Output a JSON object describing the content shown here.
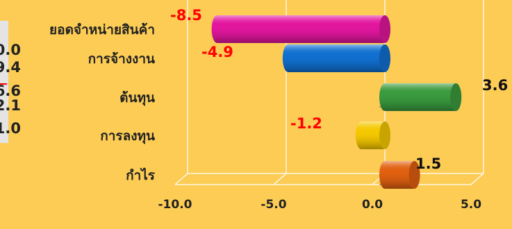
{
  "left_numbers": [
    "0.0",
    "9.4",
    "6.6",
    "2.1",
    "1.0"
  ],
  "chart_data": {
    "type": "bar",
    "orientation": "horizontal",
    "categories": [
      "ยอดจำหน่ายสินค้า",
      "การจ้างงาน",
      "ต้นทุน",
      "การลงทุน",
      "กำไร"
    ],
    "values": [
      -8.5,
      -4.9,
      3.6,
      -1.2,
      1.5
    ],
    "value_labels": [
      "-8.5",
      "-4.9",
      "3.6",
      "-1.2",
      "1.5"
    ],
    "bar_colors": [
      "#e2169e",
      "#1070d0",
      "#3a9a3e",
      "#f5c800",
      "#e06010"
    ],
    "negative_label_color": "#ff0000",
    "positive_label_color": "#111111",
    "xlim": [
      -10,
      5
    ],
    "xticks": [
      -10,
      -5,
      0,
      5
    ],
    "xtick_labels": [
      "-10.0",
      "-5.0",
      "0.0",
      "5.0"
    ],
    "grid": true,
    "style": "3d-cylinder"
  }
}
